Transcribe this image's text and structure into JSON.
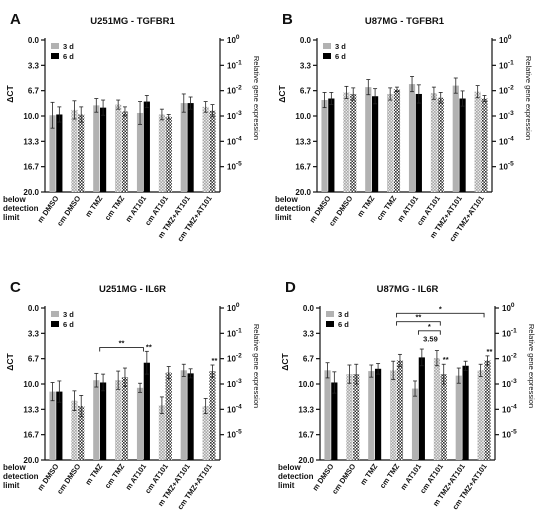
{
  "chart_data": [
    {
      "panel": "A",
      "title": "U251MG - TGFBR1",
      "type": "bar",
      "categories": [
        "m DMSO",
        "cm DMSO",
        "m TMZ",
        "cm TMZ",
        "m AT101",
        "cm AT101",
        "m TMZ+AT101",
        "cm TMZ+AT101"
      ],
      "series": [
        {
          "name": "3 d",
          "values": [
            9.9,
            9.2,
            8.6,
            8.5,
            9.6,
            9.8,
            8.3,
            8.8
          ],
          "errors": [
            1.7,
            1.2,
            0.9,
            0.6,
            1.5,
            0.7,
            1.2,
            0.7
          ]
        },
        {
          "name": "6 d",
          "values": [
            9.8,
            9.8,
            8.9,
            9.4,
            8.1,
            10.1,
            8.3,
            9.3
          ],
          "errors": [
            1.0,
            1.0,
            1.0,
            0.6,
            0.8,
            0.3,
            0.8,
            0.8
          ]
        }
      ],
      "ylabel": "ΔCT",
      "y2label": "Relative gene expression",
      "ylim": [
        0.0,
        20.0
      ],
      "yticks": [
        "0.0",
        "3.3",
        "6.7",
        "10.0",
        "13.3",
        "16.7",
        "20.0"
      ],
      "y2ticks": [
        {
          "base": "10",
          "exp": "0"
        },
        {
          "base": "10",
          "exp": "-1"
        },
        {
          "base": "10",
          "exp": "-2"
        },
        {
          "base": "10",
          "exp": "-3"
        },
        {
          "base": "10",
          "exp": "-4"
        },
        {
          "base": "10",
          "exp": "-5"
        }
      ],
      "below_limit_label": [
        "below",
        "detection",
        "limit"
      ],
      "annotations": []
    },
    {
      "panel": "B",
      "title": "U87MG - TGFBR1",
      "type": "bar",
      "categories": [
        "m DMSO",
        "cm DMSO",
        "m TMZ",
        "cm TMZ",
        "m AT101",
        "cm AT101",
        "m TMZ+AT101",
        "cm TMZ+AT101"
      ],
      "series": [
        {
          "name": "3 d",
          "values": [
            7.9,
            6.9,
            6.2,
            7.1,
            5.8,
            7.0,
            6.0,
            6.8
          ],
          "errors": [
            1.0,
            0.8,
            1.0,
            0.8,
            1.0,
            0.8,
            1.0,
            0.8
          ]
        },
        {
          "name": "6 d",
          "values": [
            7.7,
            7.1,
            7.4,
            6.5,
            7.1,
            7.6,
            7.7,
            7.7
          ],
          "errors": [
            0.8,
            0.8,
            1.0,
            0.3,
            1.2,
            0.7,
            1.0,
            0.4
          ]
        }
      ],
      "ylabel": "ΔCT",
      "y2label": "Relative gene expression",
      "ylim": [
        0.0,
        20.0
      ],
      "yticks": [
        "0.0",
        "3.3",
        "6.7",
        "10.0",
        "13.3",
        "16.7",
        "20.0"
      ],
      "y2ticks": [
        {
          "base": "10",
          "exp": "0"
        },
        {
          "base": "10",
          "exp": "-1"
        },
        {
          "base": "10",
          "exp": "-2"
        },
        {
          "base": "10",
          "exp": "-3"
        },
        {
          "base": "10",
          "exp": "-4"
        },
        {
          "base": "10",
          "exp": "-5"
        }
      ],
      "below_limit_label": [
        "below",
        "detection",
        "limit"
      ],
      "annotations": []
    },
    {
      "panel": "C",
      "title": "U251MG - IL6R",
      "type": "bar",
      "categories": [
        "m DMSO",
        "cm DMSO",
        "m TMZ",
        "cm TMZ",
        "m AT101",
        "cm AT101",
        "m TMZ+AT101",
        "cm TMZ+AT101"
      ],
      "series": [
        {
          "name": "3 d",
          "values": [
            11.0,
            12.2,
            9.5,
            9.5,
            10.5,
            12.8,
            8.2,
            12.9
          ],
          "errors": [
            1.2,
            1.3,
            0.9,
            1.2,
            0.6,
            1.1,
            0.8,
            1.0
          ]
        },
        {
          "name": "6 d",
          "values": [
            11.0,
            12.9,
            9.8,
            9.1,
            7.2,
            8.5,
            8.6,
            8.3
          ],
          "errors": [
            1.4,
            1.4,
            1.1,
            1.2,
            1.5,
            0.8,
            0.6,
            0.8
          ]
        }
      ],
      "ylabel": "ΔCT",
      "y2label": "Relative gene expression",
      "ylim": [
        0.0,
        20.0
      ],
      "yticks": [
        "0.0",
        "3.3",
        "6.7",
        "10.0",
        "13.3",
        "16.7",
        "20.0"
      ],
      "y2ticks": [
        {
          "base": "10",
          "exp": "0"
        },
        {
          "base": "10",
          "exp": "-1"
        },
        {
          "base": "10",
          "exp": "-2"
        },
        {
          "base": "10",
          "exp": "-3"
        },
        {
          "base": "10",
          "exp": "-4"
        },
        {
          "base": "10",
          "exp": "-5"
        }
      ],
      "below_limit_label": [
        "below",
        "detection",
        "limit"
      ],
      "annotations": [
        {
          "type": "bracket",
          "from": 2,
          "to": 4,
          "y": 5.2,
          "label": "**"
        },
        {
          "type": "star",
          "category": 4,
          "series": 1,
          "label": "**"
        },
        {
          "type": "star",
          "category": 7,
          "series": 1,
          "label": "**"
        }
      ]
    },
    {
      "panel": "D",
      "title": "U87MG - IL6R",
      "type": "bar",
      "categories": [
        "m DMSO",
        "cm DMSO",
        "m TMZ",
        "cm TMZ",
        "m AT101",
        "cm AT101",
        "m TMZ+AT101",
        "cm TMZ+AT101"
      ],
      "series": [
        {
          "name": "3 d",
          "values": [
            8.2,
            8.7,
            8.3,
            8.2,
            10.6,
            6.6,
            8.9,
            8.2
          ],
          "errors": [
            1.0,
            1.2,
            0.8,
            1.2,
            1.0,
            1.0,
            1.0,
            0.8
          ]
        },
        {
          "name": "6 d",
          "values": [
            9.8,
            8.7,
            8.0,
            6.9,
            6.5,
            8.7,
            7.6,
            6.9
          ],
          "errors": [
            1.4,
            1.3,
            0.7,
            0.8,
            1.1,
            1.3,
            0.6,
            0.6
          ]
        }
      ],
      "ylabel": "ΔCT",
      "y2label": "Relative gene expression",
      "ylim": [
        0.0,
        20.0
      ],
      "yticks": [
        "0.0",
        "3.3",
        "6.7",
        "10.0",
        "13.3",
        "16.7",
        "20.0"
      ],
      "y2ticks": [
        {
          "base": "10",
          "exp": "0"
        },
        {
          "base": "10",
          "exp": "-1"
        },
        {
          "base": "10",
          "exp": "-2"
        },
        {
          "base": "10",
          "exp": "-3"
        },
        {
          "base": "10",
          "exp": "-4"
        },
        {
          "base": "10",
          "exp": "-5"
        }
      ],
      "below_limit_label": [
        "below",
        "detection",
        "limit"
      ],
      "annotations": [
        {
          "type": "bracket",
          "from": 3,
          "to": 7,
          "y": 0.7,
          "label": "*"
        },
        {
          "type": "bracket",
          "from": 3,
          "to": 5,
          "y": 1.8,
          "label": "**"
        },
        {
          "type": "bracket",
          "from": 4,
          "to": 5,
          "y": 3.0,
          "label": "*"
        },
        {
          "type": "text",
          "category": 4.55,
          "y": 4.4,
          "label": "3.59"
        },
        {
          "type": "star",
          "category": 5,
          "series": 1,
          "label": "**"
        },
        {
          "type": "star",
          "category": 7,
          "series": 1,
          "label": "**"
        }
      ]
    }
  ],
  "colors": {
    "bar_3d": "#b2b2b2",
    "bar_6d": "#000000",
    "hatch_cm_3d": "#b5b5b5",
    "hatch_cm_6d": "#333333"
  }
}
